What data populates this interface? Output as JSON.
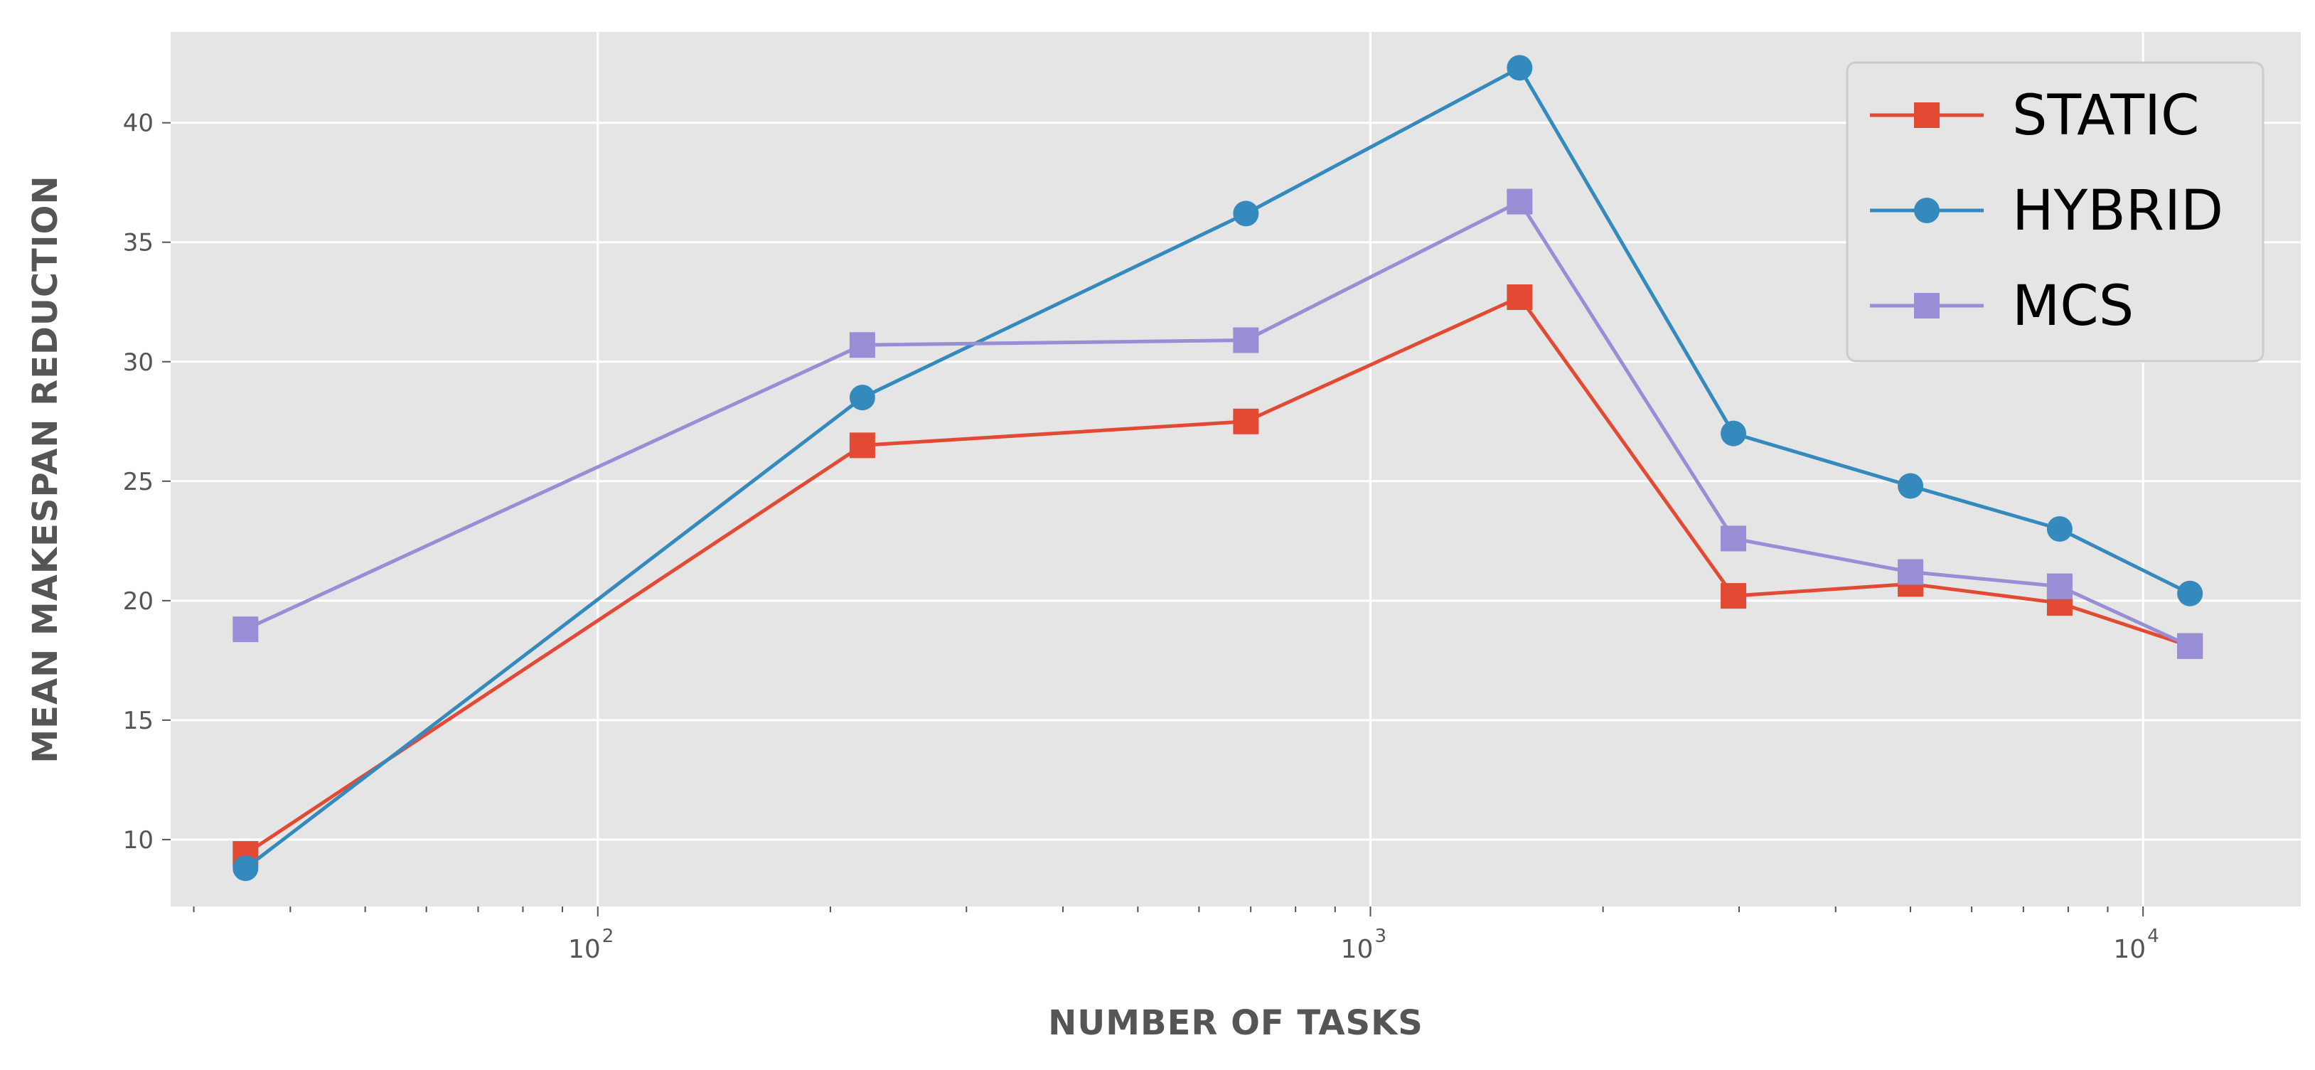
{
  "chart_data": {
    "type": "line",
    "xlabel": "NUMBER OF TASKS",
    "ylabel": "MEAN MAKESPAN REDUCTION",
    "xscale": "log",
    "xlim": [
      28,
      16000
    ],
    "ylim": [
      7.2,
      43.8
    ],
    "grid": true,
    "legend_position": "top-right",
    "yticks": [
      "10",
      "15",
      "20",
      "25",
      "30",
      "35",
      "40"
    ],
    "xticks": [
      {
        "base": "10",
        "exp": "2"
      },
      {
        "base": "10",
        "exp": "3"
      },
      {
        "base": "10",
        "exp": "4"
      }
    ],
    "x": [
      35,
      220,
      690,
      1560,
      2950,
      5000,
      7800,
      11500
    ],
    "series": [
      {
        "name": "STATIC",
        "color": "#E24A33",
        "marker": "square",
        "values": [
          9.4,
          26.5,
          27.5,
          32.7,
          20.2,
          20.7,
          19.9,
          18.1
        ]
      },
      {
        "name": "HYBRID",
        "color": "#348ABD",
        "marker": "circle",
        "values": [
          8.8,
          28.5,
          36.2,
          42.3,
          27.0,
          24.8,
          23.0,
          20.3
        ]
      },
      {
        "name": "MCS",
        "color": "#988ED5",
        "marker": "square",
        "values": [
          18.8,
          30.7,
          30.9,
          36.7,
          22.6,
          21.2,
          20.6,
          18.1
        ]
      }
    ]
  }
}
